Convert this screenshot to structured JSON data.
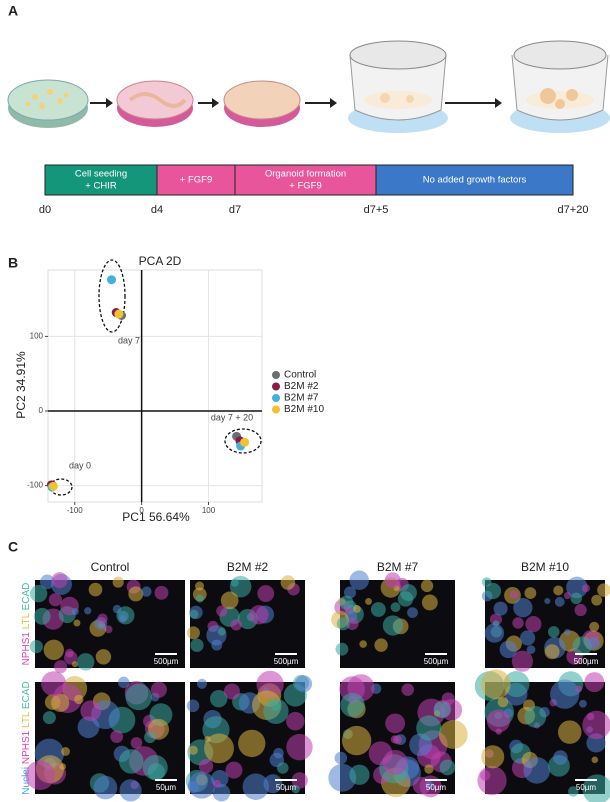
{
  "panels": {
    "a": "A",
    "b": "B",
    "c": "C"
  },
  "timeline": {
    "segments": [
      {
        "lines": [
          "Cell seeding",
          "+ CHIR"
        ]
      },
      {
        "lines": [
          "+ FGF9"
        ]
      },
      {
        "lines": [
          "Organoid formation",
          "+ FGF9"
        ]
      },
      {
        "lines": [
          "No added growth factors"
        ]
      }
    ],
    "days": [
      "d0",
      "d4",
      "d7",
      "d7+5",
      "d7+20"
    ]
  },
  "chart_data": {
    "type": "scatter",
    "title": "PCA 2D",
    "x_label": "PC1 56.64%",
    "y_label": "PC2 34.91%",
    "xlim": [
      -140,
      180
    ],
    "ylim": [
      -122,
      189
    ],
    "xticks": [
      -100,
      0,
      100
    ],
    "yticks": [
      -100,
      0,
      100
    ],
    "grid": true,
    "annotations": [
      "day 7",
      "day 7 + 20",
      "day 0"
    ],
    "series": [
      {
        "name": "Control",
        "color": "#6d6e70",
        "x": [
          -30,
          142,
          -133
        ],
        "values": [
          128,
          -34,
          -100
        ]
      },
      {
        "name": "B2M #2",
        "color": "#8b1a4a",
        "x": [
          -38,
          147,
          -135
        ],
        "values": [
          132,
          -40,
          -99
        ]
      },
      {
        "name": "B2M #7",
        "color": "#3fb0e0",
        "x": [
          -45,
          148,
          -134
        ],
        "values": [
          176,
          -47,
          -102
        ]
      },
      {
        "name": "B2M #10",
        "color": "#f2c12e",
        "x": [
          -34,
          154,
          -132
        ],
        "values": [
          130,
          -42,
          -101
        ]
      }
    ]
  },
  "microscopy": {
    "columns": [
      "Control",
      "B2M #2",
      "B2M #7",
      "B2M #10"
    ],
    "rows": [
      {
        "stains": [
          "NPHS1",
          "LTL",
          "ECAD"
        ],
        "scale": "500µm"
      },
      {
        "stains": [
          "Nuclei",
          "NPHS1",
          "LTL",
          "ECAD"
        ],
        "scale": "50µm"
      }
    ]
  }
}
